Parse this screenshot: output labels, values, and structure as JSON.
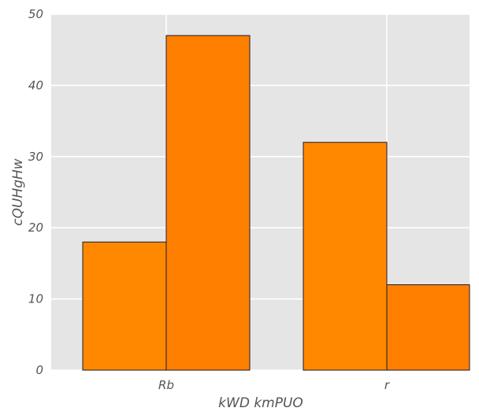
{
  "chart_data": {
    "type": "bar",
    "title": "",
    "xlabel": "kWD kmPUO",
    "ylabel": "cQUHgHw",
    "categories": [
      "Rb",
      "r"
    ],
    "series": [
      {
        "values": [
          18,
          32
        ],
        "color": "#FF8800"
      },
      {
        "values": [
          47,
          12
        ],
        "color": "#FF7F00"
      }
    ],
    "ylim": [
      0,
      50
    ],
    "yticks": [
      0,
      10,
      20,
      30,
      40,
      50
    ],
    "grid": true,
    "background": "#E5E5E5",
    "bar_edge_color": "#1a1a2e"
  }
}
